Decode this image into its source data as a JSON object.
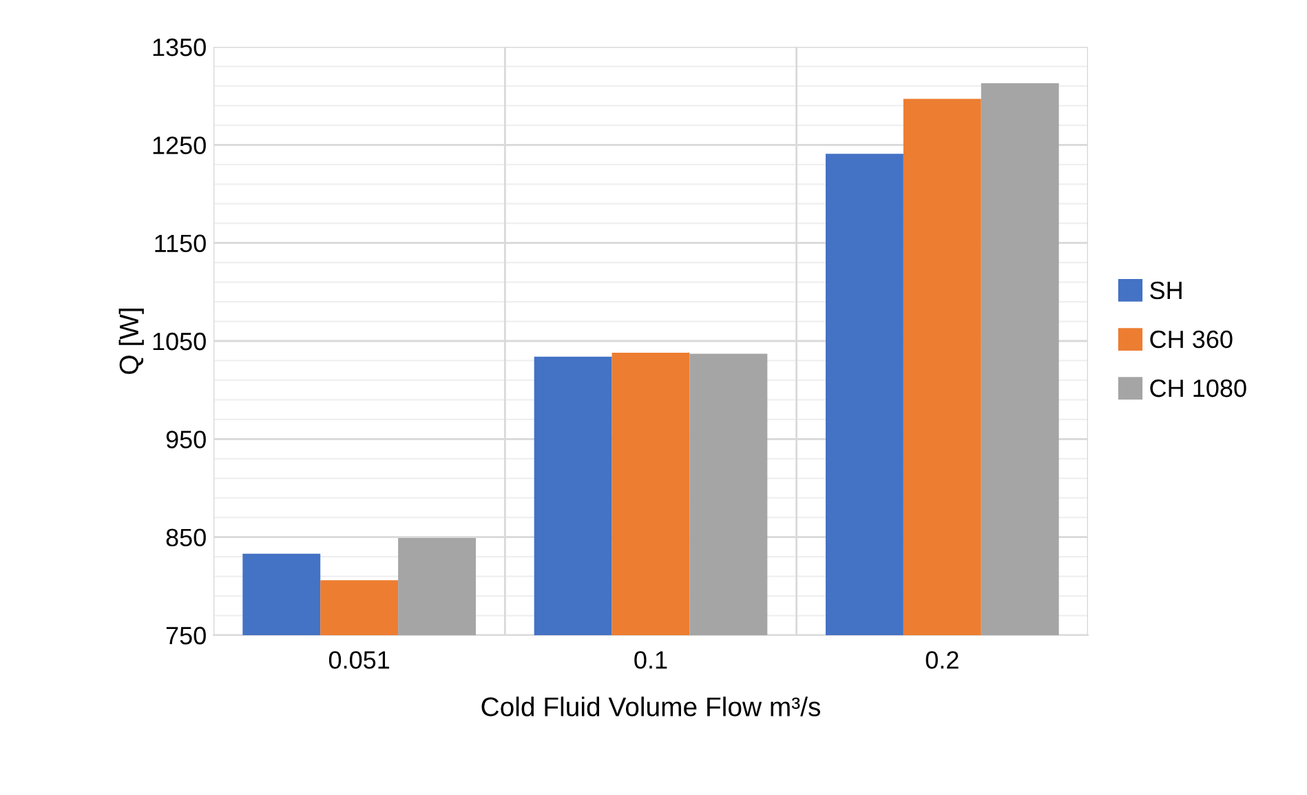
{
  "chart_data": {
    "type": "bar",
    "xlabel": "Cold Fluid Volume Flow m³/s",
    "ylabel": "Q [W]",
    "categories": [
      "0.051",
      "0.1",
      "0.2"
    ],
    "series": [
      {
        "name": "SH",
        "color": "#4472c4",
        "values": [
          833,
          1034,
          1241
        ]
      },
      {
        "name": "CH 360",
        "color": "#ed7d31",
        "values": [
          806,
          1038,
          1297
        ]
      },
      {
        "name": "CH 1080",
        "color": "#a5a5a5",
        "values": [
          849,
          1037,
          1313
        ]
      }
    ],
    "ylim": [
      750,
      1350
    ],
    "yticks": [
      750,
      850,
      950,
      1050,
      1150,
      1250,
      1350
    ],
    "grid": true,
    "legend": "right"
  }
}
